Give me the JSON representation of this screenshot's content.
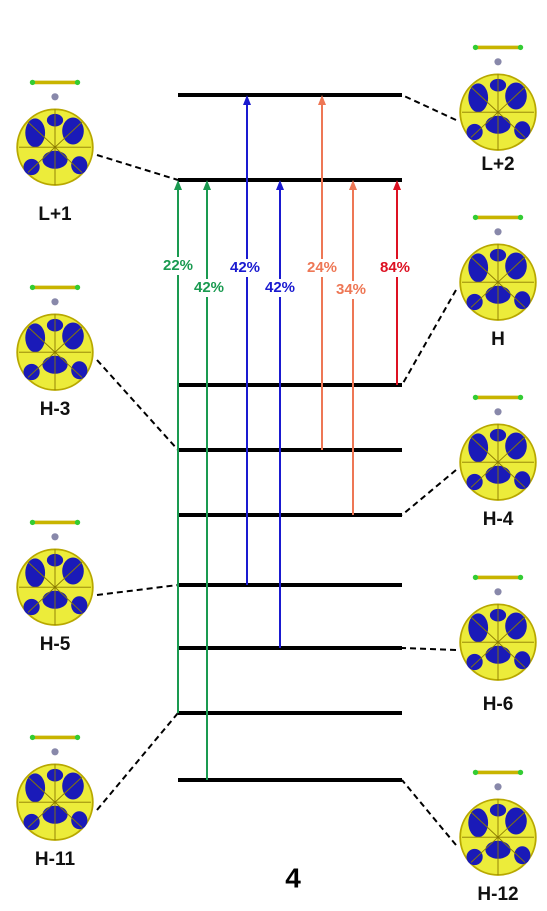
{
  "orbitals": [
    "L+2",
    "L+1",
    "H",
    "H-3",
    "H-4",
    "H-5",
    "H-6",
    "H-11",
    "H-12"
  ],
  "transitions": [
    {
      "label": "22%"
    },
    {
      "label": "42%"
    },
    {
      "label": "42%"
    },
    {
      "label": "42%"
    },
    {
      "label": "24%"
    },
    {
      "label": "34%"
    },
    {
      "label": "84%"
    }
  ],
  "compound": "4"
}
